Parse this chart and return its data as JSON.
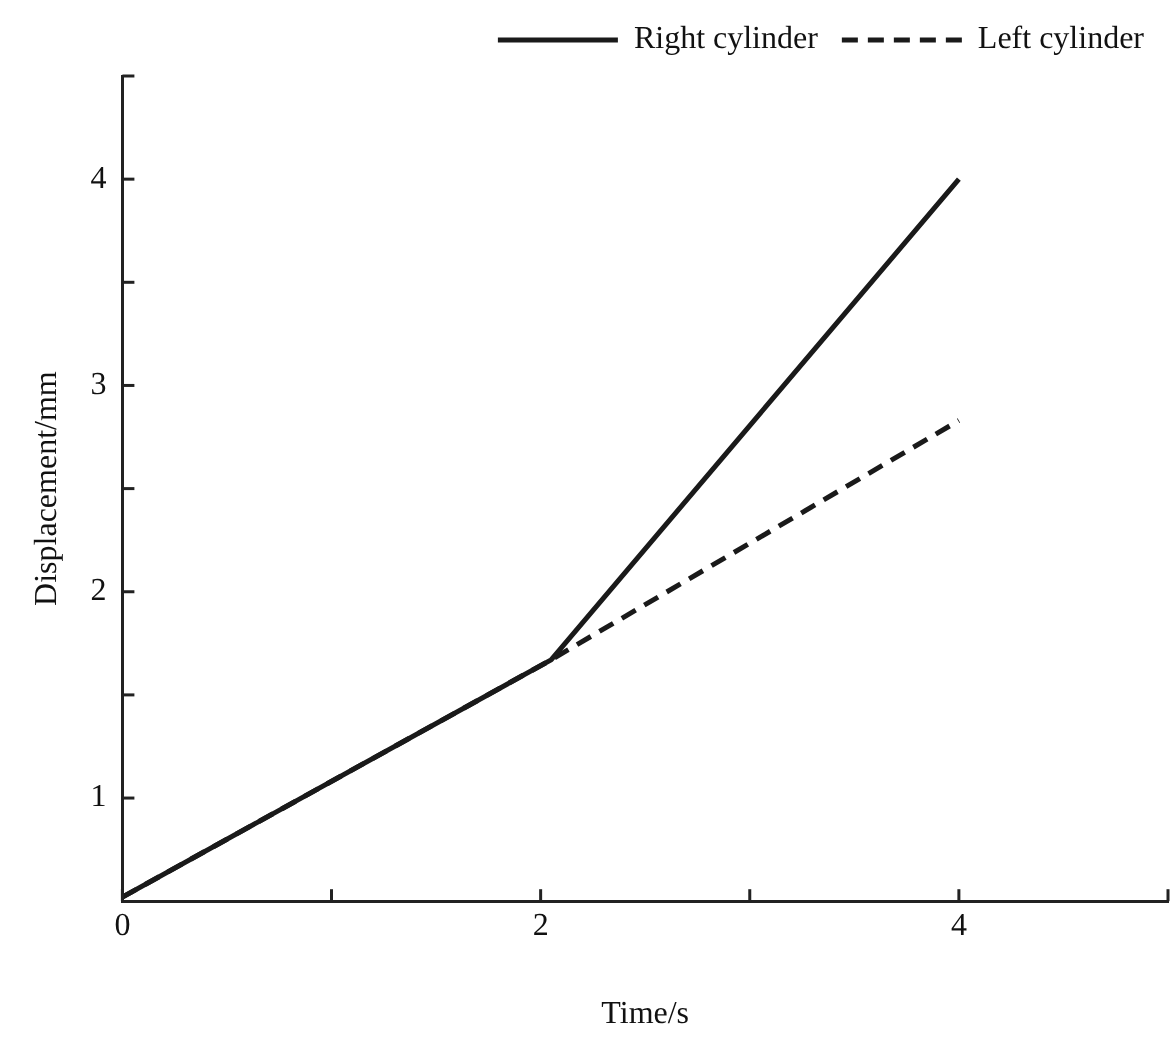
{
  "chart_data": {
    "type": "line",
    "xlabel": "Time/s",
    "ylabel": "Displacement/mm",
    "xlim": [
      0,
      5
    ],
    "xticks": [
      0,
      {
        "value": 1,
        "label": null
      },
      2,
      {
        "value": 3,
        "label": null
      },
      4,
      {
        "value": 5,
        "label": null
      }
    ],
    "ylim": [
      0.5,
      4.5
    ],
    "yticks": [
      1,
      {
        "value": 1.5,
        "label": null
      },
      2,
      {
        "value": 2.5,
        "label": null
      },
      3,
      {
        "value": 3.5,
        "label": null
      },
      4,
      {
        "value": 4.5,
        "label": null
      }
    ],
    "grid": false,
    "legend": "top right",
    "marker": "none",
    "series": [
      {
        "name": "Right cylinder",
        "color": "#1a1a1a",
        "line_style": "solid",
        "x": [
          0,
          2.05,
          4
        ],
        "values": [
          0.52,
          1.67,
          4.0
        ]
      },
      {
        "name": "Left cylinder",
        "color": "#1a1a1a",
        "line_style": "dashed",
        "x": [
          0,
          2.05,
          4
        ],
        "values": [
          0.52,
          1.67,
          2.83
        ]
      }
    ]
  }
}
